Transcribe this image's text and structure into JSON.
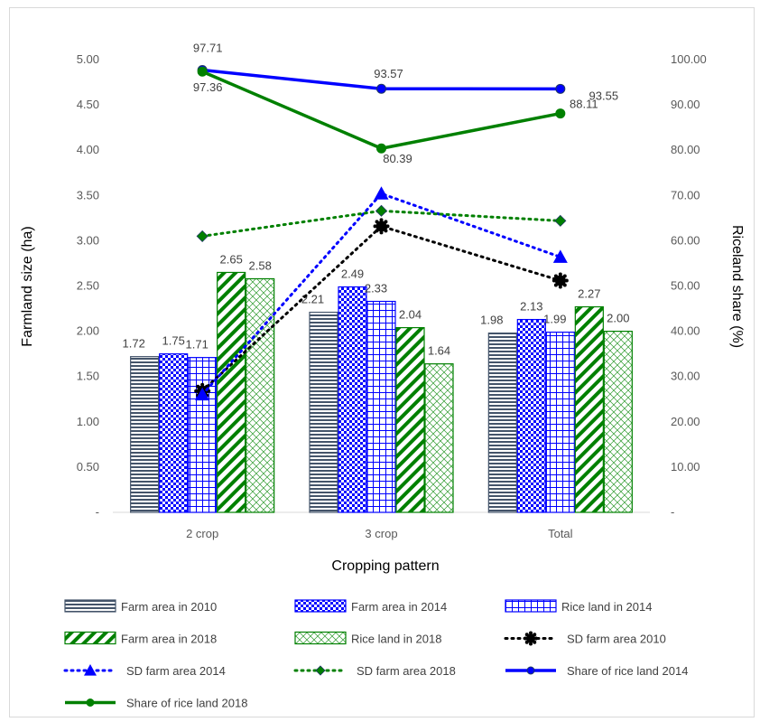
{
  "chart_data": {
    "type": "bar",
    "categories": [
      "2 crop",
      "3 crop",
      "Total"
    ],
    "xlabel": "Cropping pattern",
    "ylabel": "Farmland size (ha)",
    "y2label": "Riceland share (%)",
    "ylim": [
      0,
      5
    ],
    "y2lim": [
      0,
      100
    ],
    "yticks": [
      "-",
      "0.50",
      "1.00",
      "1.50",
      "2.00",
      "2.50",
      "3.00",
      "3.50",
      "4.00",
      "4.50",
      "5.00"
    ],
    "y2ticks": [
      "-",
      "10.00",
      "20.00",
      "30.00",
      "40.00",
      "50.00",
      "60.00",
      "70.00",
      "80.00",
      "90.00",
      "100.00"
    ],
    "grid": false,
    "legend_position": "bottom",
    "bar_series": [
      {
        "name": "Farm area in 2010",
        "values": [
          1.72,
          2.21,
          1.98
        ],
        "labels": [
          "1.72",
          "2.21",
          "1.98"
        ],
        "pattern": "hlines",
        "color": "#44546a"
      },
      {
        "name": "Farm area in 2014",
        "values": [
          1.75,
          2.49,
          2.13
        ],
        "labels": [
          "1.75",
          "2.49",
          "2.13"
        ],
        "pattern": "checker",
        "color": "#0000ff"
      },
      {
        "name": "Rice land in 2014",
        "values": [
          1.71,
          2.33,
          1.99
        ],
        "labels": [
          "1.71",
          "2.33",
          "1.99"
        ],
        "pattern": "grid",
        "color": "#0000ff"
      },
      {
        "name": "Farm area in 2018",
        "values": [
          2.65,
          2.04,
          2.27
        ],
        "labels": [
          "2.65",
          "2.04",
          "2.27"
        ],
        "pattern": "diag",
        "color": "#008000"
      },
      {
        "name": "Rice land in 2018",
        "values": [
          2.58,
          1.64,
          2.0
        ],
        "labels": [
          "2.58",
          "1.64",
          "2.00"
        ],
        "pattern": "lattice",
        "color": "#008000"
      }
    ],
    "line_series": [
      {
        "name": "SD farm area 2010",
        "axis": "left",
        "values": [
          1.34,
          3.16,
          2.56
        ],
        "style": "dotted",
        "marker": "gear",
        "color": "#000000"
      },
      {
        "name": "SD farm area 2014",
        "axis": "left",
        "values": [
          1.3,
          3.52,
          2.82
        ],
        "style": "dotted",
        "marker": "triangle",
        "color": "#0000ff"
      },
      {
        "name": "SD farm area 2018",
        "axis": "left",
        "values": [
          3.05,
          3.33,
          3.22
        ],
        "style": "dotted",
        "marker": "diamond",
        "color": "#008000"
      },
      {
        "name": "Share of rice land 2014",
        "axis": "right",
        "values": [
          97.71,
          93.57,
          93.55
        ],
        "labels": [
          "97.71",
          "93.57",
          "93.55"
        ],
        "style": "solid",
        "marker": "circle",
        "color": "#0000ff"
      },
      {
        "name": "Share of rice land 2018",
        "axis": "right",
        "values": [
          97.36,
          80.39,
          88.11
        ],
        "labels": [
          "97.36",
          "80.39",
          "88.11"
        ],
        "style": "solid",
        "marker": "circle",
        "color": "#008000"
      }
    ]
  }
}
